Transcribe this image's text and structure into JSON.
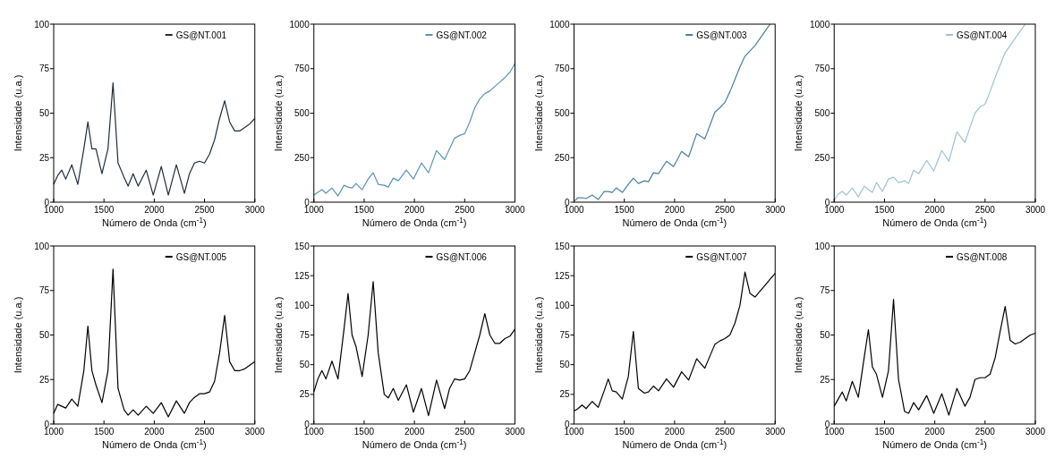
{
  "chart_data": [
    {
      "type": "line",
      "xlabel": "Número de Onda (cm$^{-1}$)",
      "ylabel": "Intensidade (u.a.)",
      "x": [
        1000,
        1040,
        1080,
        1120,
        1180,
        1240,
        1300,
        1340,
        1380,
        1420,
        1480,
        1540,
        1590,
        1640,
        1700,
        1740,
        1790,
        1840,
        1920,
        1990,
        2070,
        2140,
        2220,
        2300,
        2350,
        2400,
        2450,
        2500,
        2550,
        2600,
        2650,
        2700,
        2750,
        2800,
        2850,
        2900,
        2950,
        3000
      ],
      "xlim": [
        1000,
        3000
      ],
      "xticks": [
        1000,
        1500,
        2000,
        2500,
        3000
      ],
      "ylim": [
        0,
        100
      ],
      "yticks": [
        0,
        25,
        50,
        75,
        100
      ],
      "legend": "top right",
      "series": [
        {
          "name": "GS@NT.001",
          "color": "#1f2d3a",
          "values": [
            10,
            15,
            18,
            13,
            21,
            10,
            30,
            45,
            30,
            30,
            16,
            30,
            67,
            22,
            14,
            9,
            16,
            9,
            18,
            4,
            20,
            4,
            21,
            5,
            16,
            22,
            23,
            22,
            27,
            35,
            47,
            57,
            45,
            40,
            40,
            42,
            44,
            47
          ]
        }
      ]
    },
    {
      "type": "line",
      "xlabel": "Número de Onda (cm$^{-1}$)",
      "ylabel": "Intensidade (u.a.)",
      "x": [
        1000,
        1040,
        1080,
        1120,
        1180,
        1240,
        1300,
        1340,
        1380,
        1420,
        1480,
        1540,
        1590,
        1640,
        1700,
        1740,
        1790,
        1840,
        1920,
        1990,
        2070,
        2140,
        2220,
        2300,
        2350,
        2400,
        2450,
        2500,
        2550,
        2600,
        2650,
        2700,
        2750,
        2800,
        2850,
        2900,
        2950,
        3000
      ],
      "xlim": [
        1000,
        3000
      ],
      "xticks": [
        1000,
        1500,
        2000,
        2500,
        3000
      ],
      "ylim": [
        0,
        1000
      ],
      "yticks": [
        0,
        250,
        500,
        750,
        1000
      ],
      "legend": "top right",
      "series": [
        {
          "name": "GS@NT.002",
          "color": "#5b93b8",
          "values": [
            40,
            55,
            70,
            50,
            80,
            35,
            95,
            85,
            80,
            105,
            70,
            130,
            165,
            100,
            95,
            85,
            135,
            120,
            180,
            130,
            220,
            165,
            290,
            240,
            300,
            360,
            375,
            385,
            450,
            530,
            580,
            610,
            625,
            650,
            675,
            700,
            730,
            780
          ]
        }
      ]
    },
    {
      "type": "line",
      "xlabel": "Número de Onda (cm$^{-1}$)",
      "ylabel": "Intensidade (u.a.)",
      "xlim": [
        1000,
        3000
      ],
      "xticks": [
        1000,
        1500,
        2000,
        2500,
        3000
      ],
      "ylim": [
        0,
        1000
      ],
      "yticks": [
        0,
        250,
        500,
        750,
        1000
      ],
      "legend": "top right",
      "series": [
        {
          "name": "GS@NT.003",
          "color": "#4a7f9f",
          "x": [
            1000,
            1040,
            1080,
            1120,
            1180,
            1240,
            1300,
            1340,
            1380,
            1420,
            1480,
            1540,
            1590,
            1640,
            1700,
            1740,
            1790,
            1840,
            1920,
            1990,
            2070,
            2140,
            2220,
            2300,
            2350,
            2400,
            2450,
            2500,
            2550,
            2600,
            2650,
            2700,
            2750,
            2800,
            2850,
            2900,
            2950
          ],
          "values": [
            5,
            25,
            25,
            20,
            40,
            15,
            60,
            60,
            55,
            80,
            55,
            100,
            135,
            105,
            120,
            115,
            165,
            160,
            230,
            200,
            285,
            255,
            385,
            355,
            430,
            505,
            530,
            560,
            620,
            690,
            760,
            820,
            850,
            880,
            920,
            960,
            1000
          ]
        }
      ]
    },
    {
      "type": "line",
      "xlabel": "Número de Onda (cm$^{-1}$)",
      "ylabel": "Intensidade (u.a.)",
      "xlim": [
        1000,
        3000
      ],
      "xticks": [
        1000,
        1500,
        2000,
        2500,
        3000
      ],
      "ylim": [
        0,
        1000
      ],
      "yticks": [
        0,
        250,
        500,
        750,
        1000
      ],
      "legend": "top right",
      "series": [
        {
          "name": "GS@NT.004",
          "color": "#9fc1d6",
          "x": [
            1000,
            1040,
            1080,
            1120,
            1180,
            1240,
            1300,
            1340,
            1380,
            1420,
            1480,
            1540,
            1590,
            1640,
            1700,
            1740,
            1790,
            1840,
            1920,
            1990,
            2070,
            2140,
            2220,
            2300,
            2350,
            2400,
            2450,
            2500,
            2550,
            2600,
            2650,
            2700,
            2750,
            2800,
            2850,
            2900
          ],
          "values": [
            10,
            45,
            60,
            40,
            80,
            30,
            90,
            70,
            55,
            110,
            60,
            130,
            140,
            110,
            120,
            105,
            180,
            160,
            235,
            175,
            290,
            230,
            395,
            335,
            420,
            500,
            535,
            550,
            620,
            700,
            770,
            840,
            880,
            920,
            960,
            1000
          ]
        }
      ]
    },
    {
      "type": "line",
      "xlabel": "Número de Onda (cm$^{-1}$)",
      "ylabel": "Intensidade (u.a.)",
      "x": [
        1000,
        1040,
        1080,
        1120,
        1180,
        1240,
        1300,
        1340,
        1380,
        1420,
        1480,
        1540,
        1590,
        1640,
        1700,
        1740,
        1790,
        1840,
        1920,
        1990,
        2070,
        2140,
        2220,
        2300,
        2350,
        2400,
        2450,
        2500,
        2550,
        2600,
        2650,
        2700,
        2750,
        2800,
        2850,
        2900,
        2950,
        3000
      ],
      "xlim": [
        1000,
        3000
      ],
      "xticks": [
        1000,
        1500,
        2000,
        2500,
        3000
      ],
      "ylim": [
        0,
        100
      ],
      "yticks": [
        0,
        25,
        50,
        75,
        100
      ],
      "legend": "top right",
      "series": [
        {
          "name": "GS@NT.005",
          "color": "#000000",
          "values": [
            6,
            11,
            10,
            9,
            14,
            10,
            30,
            55,
            30,
            22,
            12,
            30,
            87,
            20,
            8,
            5,
            8,
            5,
            10,
            6,
            12,
            4,
            13,
            6,
            12,
            15,
            17,
            17,
            18,
            24,
            40,
            61,
            35,
            30,
            30,
            31,
            33,
            35
          ]
        }
      ]
    },
    {
      "type": "line",
      "xlabel": "Número de Onda (cm$^{-1}$)",
      "ylabel": "Intensidade (u.a.)",
      "x": [
        1000,
        1040,
        1080,
        1120,
        1180,
        1240,
        1300,
        1340,
        1380,
        1420,
        1480,
        1540,
        1590,
        1640,
        1700,
        1740,
        1790,
        1840,
        1920,
        1990,
        2070,
        2140,
        2220,
        2300,
        2350,
        2400,
        2450,
        2500,
        2550,
        2600,
        2650,
        2700,
        2750,
        2800,
        2850,
        2900,
        2950,
        3000
      ],
      "xlim": [
        1000,
        3000
      ],
      "xticks": [
        1000,
        1500,
        2000,
        2500,
        3000
      ],
      "ylim": [
        0,
        150
      ],
      "yticks": [
        0,
        25,
        50,
        75,
        100,
        125,
        150
      ],
      "legend": "top right",
      "series": [
        {
          "name": "GS@NT.006",
          "color": "#000000",
          "values": [
            27,
            38,
            45,
            38,
            53,
            38,
            80,
            110,
            75,
            65,
            40,
            75,
            120,
            60,
            25,
            22,
            30,
            20,
            33,
            10,
            30,
            7,
            37,
            13,
            30,
            38,
            37,
            38,
            45,
            60,
            75,
            93,
            75,
            68,
            68,
            72,
            74,
            80
          ]
        }
      ]
    },
    {
      "type": "line",
      "xlabel": "Número de Onda (cm$^{-1}$)",
      "ylabel": "Intensidade (u.a.)",
      "x": [
        1000,
        1040,
        1080,
        1120,
        1180,
        1240,
        1300,
        1340,
        1380,
        1420,
        1480,
        1540,
        1590,
        1640,
        1700,
        1740,
        1790,
        1840,
        1920,
        1990,
        2070,
        2140,
        2220,
        2300,
        2350,
        2400,
        2450,
        2500,
        2550,
        2600,
        2650,
        2700,
        2750,
        2800,
        2850,
        2900,
        2950,
        3000
      ],
      "xlim": [
        1000,
        3000
      ],
      "xticks": [
        1000,
        1500,
        2000,
        2500,
        3000
      ],
      "ylim": [
        0,
        150
      ],
      "yticks": [
        0,
        25,
        50,
        75,
        100,
        125,
        150
      ],
      "legend": "top right",
      "series": [
        {
          "name": "GS@NT.007",
          "color": "#000000",
          "values": [
            11,
            13,
            16,
            13,
            19,
            14,
            28,
            38,
            28,
            27,
            21,
            40,
            78,
            30,
            26,
            27,
            32,
            28,
            38,
            31,
            44,
            37,
            55,
            47,
            57,
            67,
            70,
            72,
            75,
            85,
            100,
            128,
            110,
            107,
            112,
            117,
            122,
            127
          ]
        }
      ]
    },
    {
      "type": "line",
      "xlabel": "Número de Onda (cm$^{-1}$)",
      "ylabel": "Intensidade (u.a.)",
      "x": [
        1000,
        1040,
        1080,
        1120,
        1180,
        1240,
        1300,
        1340,
        1380,
        1420,
        1480,
        1540,
        1590,
        1640,
        1700,
        1740,
        1790,
        1840,
        1920,
        1990,
        2070,
        2140,
        2220,
        2300,
        2350,
        2400,
        2450,
        2500,
        2550,
        2600,
        2650,
        2700,
        2750,
        2800,
        2850,
        2900,
        2950,
        3000
      ],
      "xlim": [
        1000,
        3000
      ],
      "xticks": [
        1000,
        1500,
        2000,
        2500,
        3000
      ],
      "ylim": [
        0,
        100
      ],
      "yticks": [
        0,
        25,
        50,
        75,
        100
      ],
      "legend": "top right",
      "series": [
        {
          "name": "GS@NT.008",
          "color": "#000000",
          "values": [
            10,
            14,
            18,
            13,
            24,
            15,
            38,
            53,
            32,
            28,
            15,
            30,
            70,
            25,
            7,
            6,
            12,
            8,
            16,
            6,
            17,
            5,
            20,
            10,
            15,
            25,
            26,
            26,
            28,
            37,
            52,
            66,
            47,
            45,
            46,
            48,
            50,
            51
          ]
        }
      ]
    }
  ]
}
